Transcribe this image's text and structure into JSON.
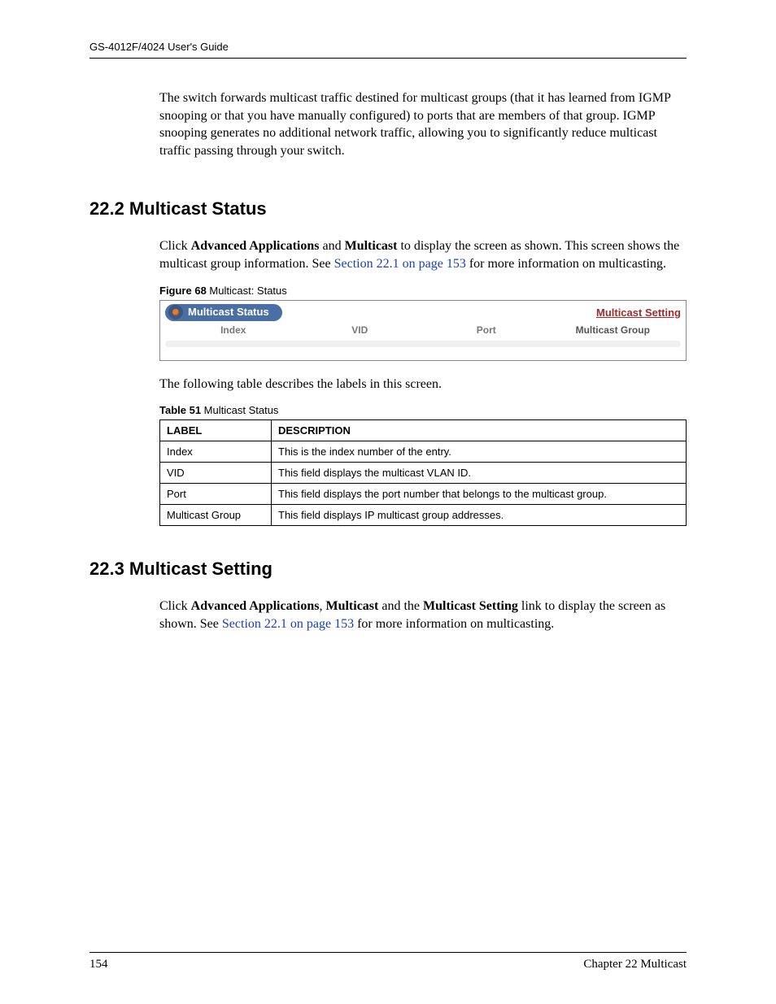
{
  "header": {
    "title": "GS-4012F/4024 User's Guide"
  },
  "intro": {
    "text": "The switch forwards multicast traffic destined for multicast groups (that it has learned from IGMP snooping or that you have manually configured) to ports that are members of that group. IGMP snooping generates no additional network traffic, allowing you to significantly reduce multicast traffic passing through your switch."
  },
  "section_22_2": {
    "heading": "22.2  Multicast Status",
    "para_pre": "Click ",
    "bold1": "Advanced Applications",
    "mid1": " and ",
    "bold2": "Multicast",
    "mid2": " to display the screen as shown. This screen shows the multicast group information. See ",
    "link": "Section 22.1 on page 153",
    "after": " for more information on multicasting.",
    "figure_label": "Figure 68",
    "figure_title": "   Multicast: Status",
    "figure": {
      "pill_label": "Multicast Status",
      "setting_link": "Multicast Setting",
      "cols": {
        "c1": "Index",
        "c2": "VID",
        "c3": "Port",
        "c4": "Multicast Group"
      }
    },
    "table_intro": "The following table describes the labels in this screen.",
    "table_label": "Table 51",
    "table_title": "   Multicast Status",
    "table": {
      "h1": "LABEL",
      "h2": "DESCRIPTION",
      "rows": [
        {
          "label": "Index",
          "desc": "This is the index number of the entry."
        },
        {
          "label": "VID",
          "desc": "This field displays the multicast VLAN ID."
        },
        {
          "label": "Port",
          "desc": "This field displays the port number that belongs to the multicast group."
        },
        {
          "label": "Multicast Group",
          "desc": "This field displays IP multicast group addresses."
        }
      ]
    }
  },
  "section_22_3": {
    "heading": "22.3  Multicast Setting",
    "pre": "Click ",
    "b1": "Advanced Applications",
    "m1": ", ",
    "b2": "Multicast",
    "m2": " and the ",
    "b3": "Multicast Setting",
    "m3": " link to display the screen as shown. See ",
    "link": "Section 22.1 on page 153",
    "after": " for more information on multicasting."
  },
  "footer": {
    "page": "154",
    "chapter": "Chapter 22 Multicast"
  }
}
